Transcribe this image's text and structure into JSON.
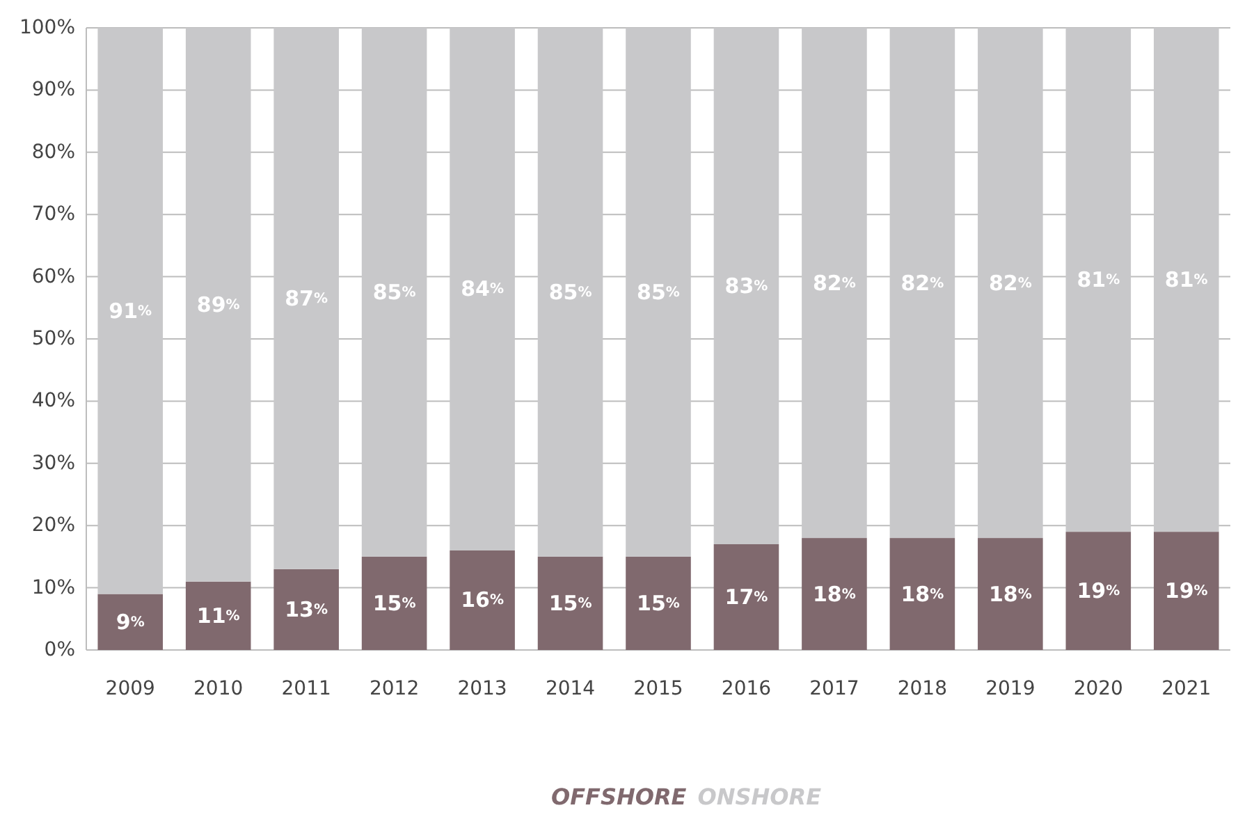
{
  "chart_data": {
    "type": "bar",
    "stacked": true,
    "categories": [
      "2009",
      "2010",
      "2011",
      "2012",
      "2013",
      "2014",
      "2015",
      "2016",
      "2017",
      "2018",
      "2019",
      "2020",
      "2021"
    ],
    "series": [
      {
        "name": "OFFSHORE",
        "color": "#80696e",
        "values": [
          9,
          11,
          13,
          15,
          16,
          15,
          15,
          17,
          18,
          18,
          18,
          19,
          19
        ],
        "value_labels": [
          "9%",
          "11%",
          "13%",
          "15%",
          "16%",
          "15%",
          "15%",
          "17%",
          "18%",
          "18%",
          "18%",
          "19%",
          "19%"
        ]
      },
      {
        "name": "ONSHORE",
        "color": "#c8c8ca",
        "values": [
          91,
          89,
          87,
          85,
          84,
          85,
          85,
          83,
          82,
          82,
          82,
          81,
          81
        ],
        "value_labels": [
          "91%",
          "89%",
          "87%",
          "85%",
          "84%",
          "85%",
          "85%",
          "83%",
          "82%",
          "82%",
          "82%",
          "81%",
          "81%"
        ]
      }
    ],
    "ylim": [
      0,
      100
    ],
    "yticks": [
      {
        "value": 0,
        "label": "0%"
      },
      {
        "value": 10,
        "label": "10%"
      },
      {
        "value": 20,
        "label": "20%"
      },
      {
        "value": 30,
        "label": "30%"
      },
      {
        "value": 40,
        "label": "40%"
      },
      {
        "value": 50,
        "label": "50%"
      },
      {
        "value": 60,
        "label": "60%"
      },
      {
        "value": 70,
        "label": "70%"
      },
      {
        "value": 80,
        "label": "80%"
      },
      {
        "value": 90,
        "label": "90%"
      },
      {
        "value": 100,
        "label": "100%"
      }
    ],
    "grid": "y",
    "legend": "bottom"
  }
}
